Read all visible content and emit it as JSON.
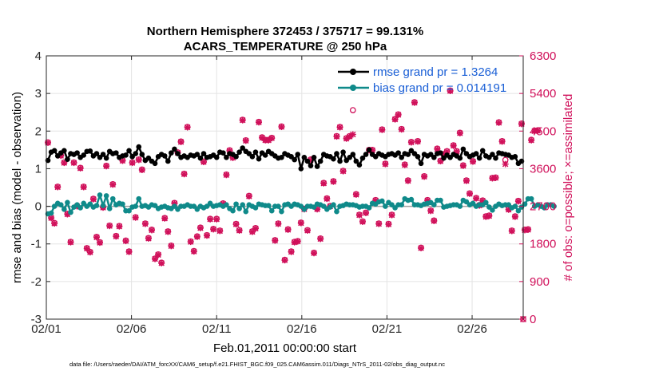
{
  "chart_data": {
    "type": "line",
    "title": "Northern Hemisphere 372453 / 375717 = 99.131%",
    "subtitle": "ACARS_TEMPERATURE @ 250 hPa",
    "xlabel": "Feb.01,2011 00:00:00 start",
    "ylabel": "rmse and bias (model - observation)",
    "y2label": "# of obs: o=possible; ×=assimilated",
    "footnote": "data file: /Users/raeder/DAI/ATM_forcXX/CAM6_setup/f.e21.FHIST_BGC.f09_025.CAM6assim.011/Diags_NTrS_2011-02/obs_diag_output.nc",
    "x_ticks": [
      "02/01",
      "02/06",
      "02/11",
      "02/16",
      "02/21",
      "02/26"
    ],
    "x_tick_days": [
      1,
      6,
      11,
      16,
      21,
      26
    ],
    "xlim_days": [
      1,
      29
    ],
    "ylim": [
      -3,
      4
    ],
    "y_ticks": [
      "-3",
      "-2",
      "-1",
      "0",
      "1",
      "2",
      "3",
      "4"
    ],
    "y2lim": [
      0,
      6300
    ],
    "y2_ticks": [
      "0",
      "900",
      "1800",
      "2700",
      "3600",
      "4500",
      "5400",
      "6300"
    ],
    "grid": true,
    "legend_position": "top-right",
    "colors": {
      "rmse": "#000000",
      "bias": "#0f8a8a",
      "obs": "#d0105a",
      "zero": "#a0a0a0",
      "legend_text": "#1a5fd6"
    },
    "series": [
      {
        "name": "rmse grand pr = 1.3264",
        "axis": "left",
        "values": [
          1.22,
          1.44,
          1.48,
          1.34,
          1.42,
          1.48,
          1.25,
          1.4,
          1.38,
          1.42,
          1.3,
          1.36,
          1.46,
          1.47,
          1.34,
          1.4,
          1.3,
          1.38,
          1.28,
          1.46,
          1.4,
          1.42,
          1.3,
          1.34,
          1.36,
          1.48,
          1.32,
          1.4,
          1.58,
          1.38,
          1.22,
          1.28,
          1.2,
          1.14,
          1.32,
          1.38,
          1.34,
          1.2,
          1.42,
          1.52,
          1.4,
          1.3,
          1.34,
          1.3,
          1.36,
          1.34,
          1.38,
          1.28,
          1.4,
          1.3,
          1.32,
          1.36,
          1.3,
          1.44,
          1.42,
          1.3,
          1.4,
          1.38,
          1.32,
          1.44,
          1.55,
          1.46,
          1.4,
          1.32,
          1.44,
          1.26,
          1.42,
          1.36,
          1.46,
          1.4,
          1.34,
          1.28,
          1.3,
          1.4,
          1.36,
          1.32,
          1.24,
          1.38,
          1.0,
          1.3,
          1.2,
          1.08,
          1.3,
          1.06,
          1.2,
          1.38,
          1.34,
          1.32,
          1.26,
          1.4,
          1.2,
          1.44,
          1.22,
          1.3,
          1.38,
          1.2,
          1.1,
          1.28,
          1.38,
          1.5,
          1.38,
          1.32,
          1.4,
          1.36,
          1.32,
          1.38,
          1.4,
          1.36,
          1.42,
          1.3,
          1.4,
          1.38,
          1.48,
          1.4,
          1.32,
          1.14,
          1.38,
          1.34,
          1.38,
          1.3,
          1.4,
          1.42,
          1.28,
          1.36,
          1.3,
          1.38,
          1.34,
          1.28,
          1.52,
          1.4,
          1.32,
          1.36,
          1.4,
          1.28,
          1.48,
          1.34,
          1.3,
          1.38,
          1.28,
          1.42,
          1.4,
          1.38,
          1.36,
          1.3,
          1.32,
          1.14,
          1.2
        ]
      },
      {
        "name": "bias grand pr = 0.014191",
        "axis": "left",
        "values": [
          -0.2,
          -0.18,
          0.0,
          0.08,
          0.04,
          -0.08,
          0.1,
          -0.16,
          -0.02,
          0.04,
          -0.04,
          0.08,
          0.0,
          0.06,
          -0.02,
          0.02,
          0.3,
          0.02,
          0.28,
          -0.06,
          0.2,
          0.04,
          0.08,
          0.06,
          -0.12,
          -0.12,
          -0.02,
          0.0,
          0.2,
          0.0,
          0.02,
          -0.02,
          0.04,
          0.02,
          -0.06,
          -0.02,
          0.0,
          -0.04,
          -0.06,
          0.0,
          -0.08,
          0.0,
          0.0,
          0.04,
          0.0,
          0.0,
          -0.08,
          0.0,
          -0.04,
          0.0,
          0.08,
          0.0,
          0.02,
          0.04,
          0.0,
          0.04,
          -0.06,
          -0.12,
          0.06,
          -0.06,
          0.04,
          -0.14,
          0.04,
          0.0,
          -0.04,
          0.06,
          0.04,
          0.02,
          0.02,
          -0.12,
          0.0,
          0.0,
          -0.14,
          0.04,
          0.06,
          0.0,
          0.06,
          0.04,
          0.0,
          -0.08,
          0.0,
          0.0,
          -0.02,
          0.06,
          0.04,
          0.0,
          -0.08,
          -0.02,
          0.04,
          -0.14,
          0.0,
          0.02,
          0.06,
          0.04,
          0.04,
          0.02,
          -0.02,
          0.0,
          0.0,
          -0.04,
          0.08,
          0.06,
          0.12,
          0.14,
          0.0,
          0.1,
          0.04,
          -0.04,
          0.04,
          0.04,
          0.2,
          0.16,
          0.18,
          0.04,
          0.04,
          0.02,
          0.06,
          0.08,
          0.1,
          0.04,
          0.16,
          0.16,
          -0.02,
          0.0,
          0.02,
          0.04,
          0.04,
          0.0,
          0.16,
          0.12,
          0.04,
          0.08,
          0.0,
          0.04,
          0.04,
          0.1,
          -0.02,
          -0.1,
          0.0,
          0.06,
          0.02,
          0.04,
          0.04,
          -0.04,
          0.0,
          -0.12,
          -0.02,
          0.06,
          0.2,
          0.2,
          0.0,
          0.04,
          0.0,
          -0.04,
          0.04,
          0.04,
          0.0
        ]
      },
      {
        "name": "# of obs possible",
        "axis": "right",
        "values": [
          4230,
          2430,
          2300,
          3170,
          3920,
          3750,
          2520,
          1850,
          3750,
          2710,
          3620,
          3170,
          1700,
          1610,
          2880,
          1970,
          1840,
          2680,
          3670,
          2240,
          3230,
          1990,
          2230,
          3800,
          1880,
          1620,
          3750,
          2440,
          3820,
          3580,
          2290,
          1940,
          2140,
          1450,
          1550,
          1350,
          2420,
          2100,
          1760,
          2780,
          3990,
          4250,
          3480,
          4600,
          1860,
          1630,
          1980,
          2190,
          3770,
          2010,
          2400,
          2160,
          2400,
          2120,
          2770,
          3460,
          4040,
          3870,
          2280,
          2130,
          4770,
          4280,
          2950,
          2100,
          2180,
          4720,
          4350,
          4290,
          4290,
          4340,
          1890,
          2290,
          4610,
          1420,
          2150,
          1620,
          1850,
          1870,
          2310,
          2640,
          2130,
          3820,
          1590,
          2640,
          1930,
          3260,
          2890,
          2710,
          3300,
          4380,
          4600,
          3550,
          4330,
          4380,
          5000,
          2990,
          2500,
          2340,
          2550,
          4050,
          4050,
          2850,
          2290,
          4540,
          3720,
          2280,
          2500,
          4790,
          4900,
          4550,
          3700,
          3320,
          4240,
          5190,
          4260,
          1710,
          3420,
          2850,
          2600,
          2360,
          4080,
          3790,
          3950,
          4020,
          5470,
          4160,
          4020,
          4460,
          3680,
          3320,
          3010,
          3780,
          2900,
          2730,
          2840,
          2460,
          2480,
          3380,
          3390,
          4710,
          4260,
          3810,
          2630,
          2120,
          2460,
          2830,
          4680,
          2140,
          2150,
          4290,
          4510,
          4520
        ]
      },
      {
        "name": "# of obs assimilated",
        "axis": "right",
        "values": [
          4220,
          2420,
          2290,
          3160,
          3910,
          3740,
          2510,
          1840,
          3740,
          2700,
          3610,
          3160,
          1690,
          1600,
          2870,
          1960,
          1830,
          2670,
          3660,
          2230,
          3220,
          1980,
          2220,
          3790,
          1870,
          1610,
          3740,
          2430,
          3810,
          3570,
          2280,
          1930,
          2130,
          1440,
          1540,
          1340,
          2410,
          2090,
          1750,
          2770,
          3980,
          4240,
          3470,
          4590,
          1850,
          1620,
          1970,
          2180,
          3760,
          2000,
          2390,
          2150,
          2390,
          2110,
          2760,
          3450,
          4030,
          3860,
          2270,
          2120,
          4760,
          4270,
          2940,
          2090,
          2170,
          4710,
          4340,
          4280,
          4280,
          4330,
          1880,
          2280,
          4600,
          1410,
          2140,
          1610,
          1840,
          1860,
          2300,
          2630,
          2120,
          3810,
          1580,
          2630,
          1920,
          3250,
          2880,
          2700,
          3290,
          4370,
          4590,
          3540,
          4320,
          4370,
          4420,
          2980,
          2490,
          2330,
          2540,
          4040,
          4040,
          2840,
          2280,
          4530,
          3710,
          2270,
          2490,
          4780,
          4890,
          4540,
          3690,
          3310,
          4230,
          5180,
          4250,
          1700,
          3410,
          2840,
          2590,
          2350,
          4070,
          3780,
          3940,
          4010,
          5460,
          4150,
          4010,
          4450,
          3670,
          3310,
          3000,
          3770,
          2890,
          2720,
          2830,
          2450,
          2470,
          3370,
          3380,
          4700,
          4250,
          3710,
          2620,
          2110,
          2450,
          2820,
          4670,
          2130,
          2140,
          4280,
          4500,
          4510
        ]
      }
    ]
  }
}
